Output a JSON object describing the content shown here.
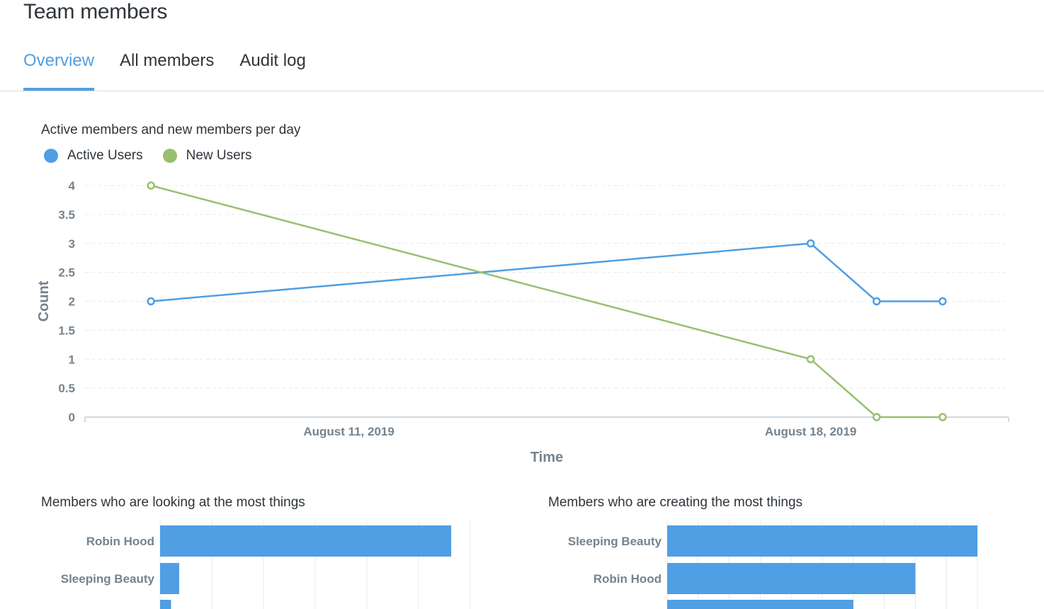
{
  "header": {
    "title": "Team members"
  },
  "tabs": [
    {
      "label": "Overview",
      "active": true
    },
    {
      "label": "All members",
      "active": false
    },
    {
      "label": "Audit log",
      "active": false
    }
  ],
  "colors": {
    "accent": "#509ee3",
    "active_users": "#509ee3",
    "new_users": "#98c06f"
  },
  "chart_data": [
    {
      "type": "line",
      "title": "Active members and new members per day",
      "xlabel": "Time",
      "ylabel": "Count",
      "x": [
        "2019-08-08",
        "2019-08-18",
        "2019-08-19",
        "2019-08-20"
      ],
      "x_tick_labels": [
        "August 11, 2019",
        "August 18, 2019"
      ],
      "y_ticks": [
        "0",
        "0.5",
        "1",
        "1.5",
        "2",
        "2.5",
        "3",
        "3.5",
        "4"
      ],
      "ylim": [
        0,
        4
      ],
      "grid": true,
      "legend_position": "top-left",
      "series": [
        {
          "name": "Active Users",
          "color": "#509ee3",
          "values": [
            2,
            3,
            2,
            2
          ]
        },
        {
          "name": "New Users",
          "color": "#98c06f",
          "values": [
            4,
            1,
            0,
            0
          ]
        }
      ]
    },
    {
      "type": "bar",
      "orientation": "horizontal",
      "title": "Members who are looking at the most things",
      "categories": [
        "Robin Hood",
        "Sleeping Beauty",
        ""
      ],
      "values": [
        61,
        4,
        2.3
      ],
      "xlim": [
        0,
        65
      ],
      "grid": true
    },
    {
      "type": "bar",
      "orientation": "horizontal",
      "title": "Members who are creating the most things",
      "categories": [
        "Sleeping Beauty",
        "Robin Hood",
        ""
      ],
      "values": [
        10,
        8,
        6
      ],
      "xlim": [
        0,
        10
      ],
      "grid": true
    }
  ]
}
